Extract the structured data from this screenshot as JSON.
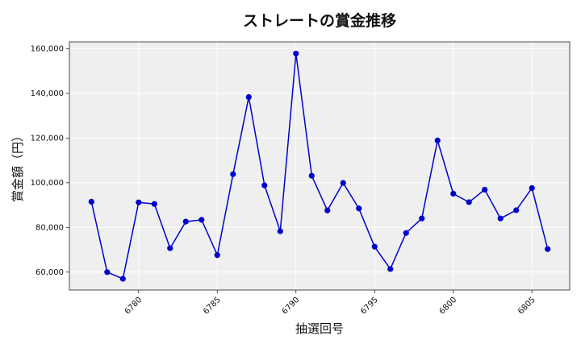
{
  "chart_data": {
    "type": "line",
    "title": "ストレートの賞金推移",
    "xlabel": "抽選回号",
    "ylabel": "賞金額（円）",
    "xlim": [
      6775.6,
      6807.4
    ],
    "ylim": [
      52000,
      163000
    ],
    "x_ticks": [
      6780,
      6785,
      6790,
      6795,
      6800,
      6805
    ],
    "y_ticks": [
      60000,
      80000,
      100000,
      120000,
      140000,
      160000
    ],
    "y_tick_labels": [
      "60,000",
      "80,000",
      "100,000",
      "120,000",
      "140,000",
      "160,000"
    ],
    "grid": true,
    "series": [
      {
        "color": "#0000cc",
        "marker": "circle",
        "x": [
          6777,
          6778,
          6779,
          6780,
          6781,
          6782,
          6783,
          6784,
          6785,
          6786,
          6787,
          6788,
          6789,
          6790,
          6791,
          6792,
          6793,
          6794,
          6795,
          6796,
          6797,
          6798,
          6799,
          6800,
          6801,
          6802,
          6803,
          6804,
          6805,
          6806
        ],
        "values": [
          91500,
          60000,
          57000,
          91200,
          90500,
          70700,
          82600,
          83400,
          67600,
          103800,
          138300,
          98800,
          78300,
          157800,
          103100,
          87600,
          99900,
          88500,
          71400,
          61400,
          77500,
          84000,
          118900,
          95100,
          91300,
          96900,
          84000,
          87700,
          97600,
          70300
        ]
      }
    ]
  }
}
